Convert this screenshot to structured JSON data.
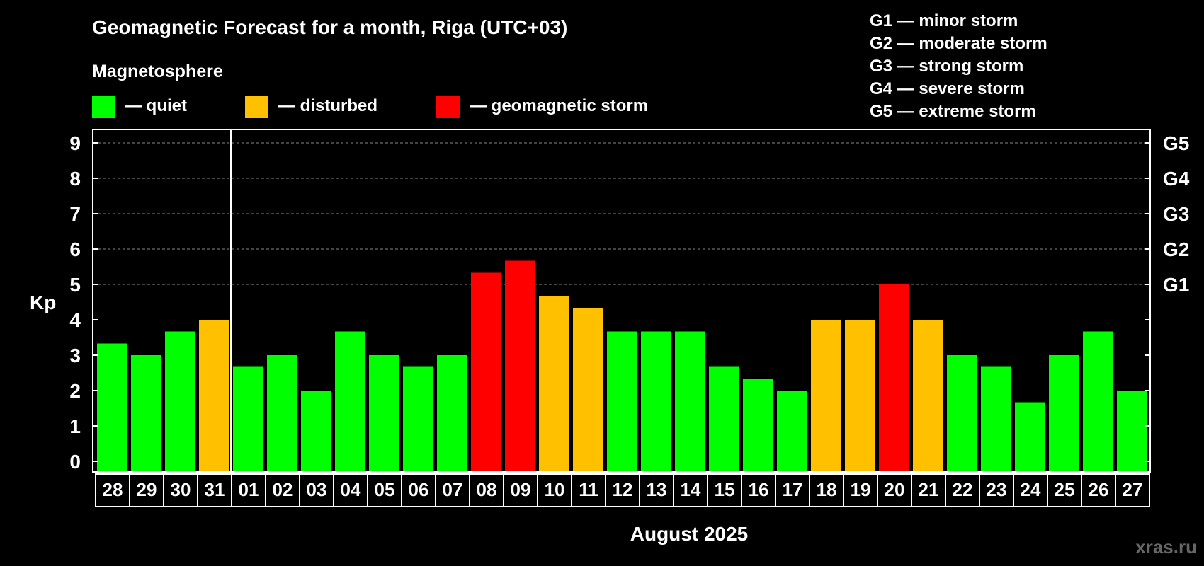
{
  "chart_data": {
    "type": "bar",
    "title": "Geomagnetic Forecast for a month, Riga (UTC+03)",
    "subtitle": "Magnetosphere",
    "ylabel": "Kp",
    "xlabel": "August 2025",
    "ylim": [
      0,
      9
    ],
    "yticks": [
      "0",
      "1",
      "2",
      "3",
      "4",
      "5",
      "6",
      "7",
      "8",
      "9"
    ],
    "right_axis_labels": [
      {
        "kp": 5,
        "label": "G1"
      },
      {
        "kp": 6,
        "label": "G2"
      },
      {
        "kp": 7,
        "label": "G3"
      },
      {
        "kp": 8,
        "label": "G4"
      },
      {
        "kp": 9,
        "label": "G5"
      }
    ],
    "legend": [
      {
        "label": "— quiet",
        "color": "#00ff00"
      },
      {
        "label": "— disturbed",
        "color": "#ffc000"
      },
      {
        "label": "— geomagnetic storm",
        "color": "#ff0000"
      }
    ],
    "storm_scale": [
      "G1 — minor storm",
      "G2 — moderate storm",
      "G3 — strong storm",
      "G4 — severe storm",
      "G5 — extreme storm"
    ],
    "month_divider_after": "31",
    "categories": [
      "28",
      "29",
      "30",
      "31",
      "01",
      "02",
      "03",
      "04",
      "05",
      "06",
      "07",
      "08",
      "09",
      "10",
      "11",
      "12",
      "13",
      "14",
      "15",
      "16",
      "17",
      "18",
      "19",
      "20",
      "21",
      "22",
      "23",
      "24",
      "25",
      "26",
      "27"
    ],
    "values": [
      3.33,
      3.0,
      3.67,
      4.0,
      2.67,
      3.0,
      2.0,
      3.67,
      3.0,
      2.67,
      3.0,
      5.33,
      5.67,
      4.67,
      4.33,
      3.67,
      3.67,
      3.67,
      2.67,
      2.33,
      2.0,
      4.0,
      4.0,
      5.0,
      4.0,
      3.0,
      2.67,
      1.67,
      3.0,
      3.67,
      2.0
    ],
    "status": [
      "quiet",
      "quiet",
      "quiet",
      "disturbed",
      "quiet",
      "quiet",
      "quiet",
      "quiet",
      "quiet",
      "quiet",
      "quiet",
      "storm",
      "storm",
      "disturbed",
      "disturbed",
      "quiet",
      "quiet",
      "quiet",
      "quiet",
      "quiet",
      "quiet",
      "disturbed",
      "disturbed",
      "storm",
      "disturbed",
      "quiet",
      "quiet",
      "quiet",
      "quiet",
      "quiet",
      "quiet"
    ],
    "status_colors": {
      "quiet": "#00ff00",
      "disturbed": "#ffc000",
      "storm": "#ff0000"
    }
  },
  "watermark": "xras.ru"
}
